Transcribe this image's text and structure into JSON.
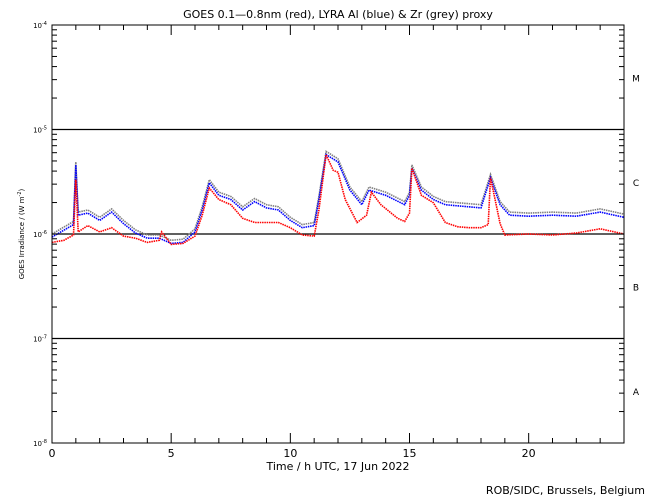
{
  "chart_data": {
    "type": "line",
    "title": "GOES 0.1—0.8nm (red), LYRA Al (blue) & Zr (grey) proxy",
    "xlabel": "Time / h UTC, 17 Jun 2022",
    "ylabel": "GOES Irradiance / (W m",
    "ylabel_sup": "-2",
    "ylabel_end": ")",
    "xlim": [
      0,
      24
    ],
    "ylim_log10": [
      -8,
      -4
    ],
    "yscale": "log",
    "x_ticks": [
      "0",
      "5",
      "10",
      "15",
      "20"
    ],
    "x_tick_values": [
      0,
      5,
      10,
      15,
      20
    ],
    "y_ticks": [
      {
        "base": "10",
        "exp": "-4",
        "log10": -4
      },
      {
        "base": "10",
        "exp": "-5",
        "log10": -5
      },
      {
        "base": "10",
        "exp": "-6",
        "log10": -6
      },
      {
        "base": "10",
        "exp": "-7",
        "log10": -7
      },
      {
        "base": "10",
        "exp": "-8",
        "log10": -8
      }
    ],
    "class_labels": [
      {
        "label": "M",
        "log10": -4.5
      },
      {
        "label": "C",
        "log10": -5.5
      },
      {
        "label": "B",
        "log10": -6.5
      },
      {
        "label": "A",
        "log10": -7.5
      }
    ],
    "reference_lines_log10": [
      -5,
      -6,
      -7
    ],
    "series": [
      {
        "name": "LYRA Zr proxy",
        "color": "#808080",
        "points": [
          [
            0,
            -6.0
          ],
          [
            0.9,
            -5.88
          ],
          [
            1.0,
            -5.31
          ],
          [
            1.1,
            -5.79
          ],
          [
            1.5,
            -5.77
          ],
          [
            2,
            -5.84
          ],
          [
            2.5,
            -5.76
          ],
          [
            3,
            -5.87
          ],
          [
            3.5,
            -5.96
          ],
          [
            4,
            -6.01
          ],
          [
            4.5,
            -6.01
          ],
          [
            5,
            -6.06
          ],
          [
            5.5,
            -6.05
          ],
          [
            6,
            -5.95
          ],
          [
            6.3,
            -5.74
          ],
          [
            6.6,
            -5.48
          ],
          [
            7,
            -5.6
          ],
          [
            7.5,
            -5.64
          ],
          [
            8,
            -5.74
          ],
          [
            8.5,
            -5.66
          ],
          [
            9,
            -5.72
          ],
          [
            9.5,
            -5.74
          ],
          [
            10,
            -5.84
          ],
          [
            10.5,
            -5.91
          ],
          [
            11,
            -5.89
          ],
          [
            11.2,
            -5.64
          ],
          [
            11.5,
            -5.21
          ],
          [
            12,
            -5.28
          ],
          [
            12.5,
            -5.55
          ],
          [
            13,
            -5.69
          ],
          [
            13.3,
            -5.55
          ],
          [
            14,
            -5.6
          ],
          [
            14.8,
            -5.69
          ],
          [
            15,
            -5.6
          ],
          [
            15.1,
            -5.34
          ],
          [
            15.5,
            -5.55
          ],
          [
            16,
            -5.64
          ],
          [
            16.5,
            -5.69
          ],
          [
            17,
            -5.7
          ],
          [
            18,
            -5.72
          ],
          [
            18.4,
            -5.43
          ],
          [
            18.8,
            -5.69
          ],
          [
            19.2,
            -5.79
          ],
          [
            20,
            -5.8
          ],
          [
            21,
            -5.79
          ],
          [
            22,
            -5.8
          ],
          [
            23,
            -5.76
          ],
          [
            24,
            -5.81
          ]
        ]
      },
      {
        "name": "LYRA Al proxy",
        "color": "#0000ff",
        "points": [
          [
            0,
            -6.03
          ],
          [
            0.9,
            -5.91
          ],
          [
            1.0,
            -5.34
          ],
          [
            1.1,
            -5.82
          ],
          [
            1.5,
            -5.8
          ],
          [
            2,
            -5.87
          ],
          [
            2.5,
            -5.79
          ],
          [
            3,
            -5.9
          ],
          [
            3.5,
            -5.99
          ],
          [
            4,
            -6.04
          ],
          [
            4.5,
            -6.04
          ],
          [
            5,
            -6.09
          ],
          [
            5.5,
            -6.08
          ],
          [
            6,
            -5.98
          ],
          [
            6.3,
            -5.77
          ],
          [
            6.6,
            -5.51
          ],
          [
            7,
            -5.63
          ],
          [
            7.5,
            -5.67
          ],
          [
            8,
            -5.77
          ],
          [
            8.5,
            -5.69
          ],
          [
            9,
            -5.75
          ],
          [
            9.5,
            -5.77
          ],
          [
            10,
            -5.87
          ],
          [
            10.5,
            -5.94
          ],
          [
            11,
            -5.92
          ],
          [
            11.2,
            -5.67
          ],
          [
            11.5,
            -5.24
          ],
          [
            12,
            -5.31
          ],
          [
            12.5,
            -5.58
          ],
          [
            13,
            -5.72
          ],
          [
            13.3,
            -5.58
          ],
          [
            14,
            -5.63
          ],
          [
            14.8,
            -5.72
          ],
          [
            15,
            -5.63
          ],
          [
            15.1,
            -5.37
          ],
          [
            15.5,
            -5.58
          ],
          [
            16,
            -5.67
          ],
          [
            16.5,
            -5.72
          ],
          [
            17,
            -5.73
          ],
          [
            18,
            -5.75
          ],
          [
            18.4,
            -5.46
          ],
          [
            18.8,
            -5.72
          ],
          [
            19.2,
            -5.82
          ],
          [
            20,
            -5.83
          ],
          [
            21,
            -5.82
          ],
          [
            22,
            -5.83
          ],
          [
            23,
            -5.79
          ],
          [
            24,
            -5.84
          ]
        ]
      },
      {
        "name": "GOES 0.1-0.8nm",
        "color": "#ff0000",
        "points": [
          [
            0,
            -6.08
          ],
          [
            0.5,
            -6.06
          ],
          [
            0.9,
            -6.01
          ],
          [
            1.0,
            -5.48
          ],
          [
            1.1,
            -5.98
          ],
          [
            1.5,
            -5.92
          ],
          [
            2,
            -5.98
          ],
          [
            2.5,
            -5.94
          ],
          [
            3,
            -6.02
          ],
          [
            3.5,
            -6.04
          ],
          [
            4,
            -6.08
          ],
          [
            4.5,
            -6.06
          ],
          [
            4.6,
            -5.98
          ],
          [
            5,
            -6.1
          ],
          [
            5.5,
            -6.09
          ],
          [
            6,
            -6.02
          ],
          [
            6.3,
            -5.82
          ],
          [
            6.6,
            -5.56
          ],
          [
            7,
            -5.67
          ],
          [
            7.5,
            -5.72
          ],
          [
            8,
            -5.85
          ],
          [
            8.5,
            -5.89
          ],
          [
            9,
            -5.89
          ],
          [
            9.5,
            -5.89
          ],
          [
            10,
            -5.94
          ],
          [
            10.5,
            -6.01
          ],
          [
            11,
            -6.02
          ],
          [
            11.2,
            -5.77
          ],
          [
            11.5,
            -5.24
          ],
          [
            11.8,
            -5.39
          ],
          [
            12,
            -5.41
          ],
          [
            12.3,
            -5.67
          ],
          [
            12.8,
            -5.89
          ],
          [
            13.2,
            -5.82
          ],
          [
            13.4,
            -5.6
          ],
          [
            13.8,
            -5.72
          ],
          [
            14.5,
            -5.85
          ],
          [
            14.8,
            -5.88
          ],
          [
            15,
            -5.8
          ],
          [
            15.1,
            -5.37
          ],
          [
            15.5,
            -5.63
          ],
          [
            16,
            -5.7
          ],
          [
            16.5,
            -5.89
          ],
          [
            17,
            -5.93
          ],
          [
            17.5,
            -5.94
          ],
          [
            18,
            -5.94
          ],
          [
            18.3,
            -5.91
          ],
          [
            18.4,
            -5.46
          ],
          [
            18.8,
            -5.9
          ],
          [
            19,
            -6.01
          ],
          [
            20,
            -6.0
          ],
          [
            21,
            -6.01
          ],
          [
            22,
            -5.99
          ],
          [
            23,
            -5.95
          ],
          [
            24,
            -6.0
          ]
        ]
      }
    ]
  },
  "footer": "ROB/SIDC, Brussels, Belgium"
}
